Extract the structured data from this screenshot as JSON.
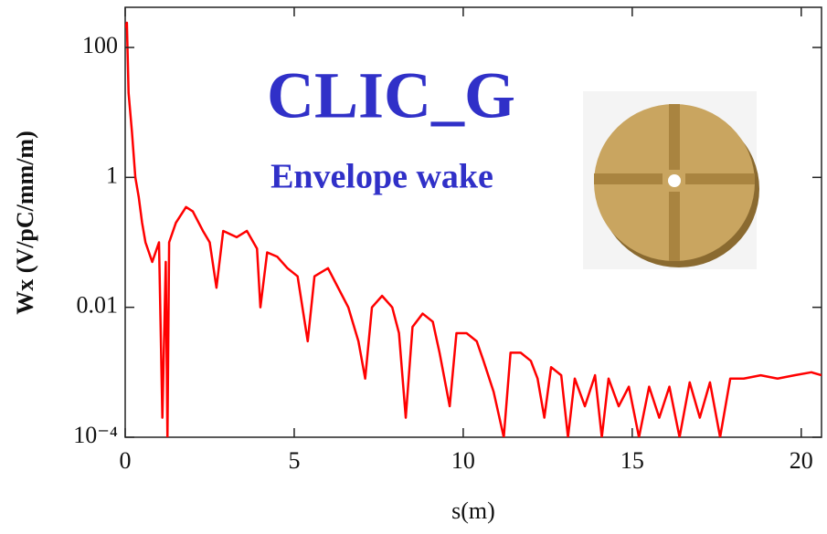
{
  "chart_data": {
    "type": "line",
    "title": "CLIC_G",
    "subtitle": "Envelope wake",
    "x_label": "s(m)",
    "y_label": "Wx (V/pC/mm/m)",
    "log_y": true,
    "xlim": [
      0,
      20.6
    ],
    "ylim": [
      0.0001,
      415
    ],
    "xticks": [
      0,
      5,
      10,
      15,
      20
    ],
    "yticks": [
      100,
      1,
      0.01,
      {
        "value": 0.0001,
        "label": "10⁻⁴"
      }
    ],
    "series": [
      {
        "name": "Wx",
        "color": "#ff0000",
        "x": [
          0,
          0.05,
          0.1,
          0.2,
          0.3,
          0.4,
          0.5,
          0.6,
          0.8,
          1.0,
          1.1,
          1.2,
          1.25,
          1.3,
          1.5,
          1.8,
          2.0,
          2.3,
          2.5,
          2.7,
          2.9,
          3.3,
          3.6,
          3.9,
          4.0,
          4.2,
          4.5,
          4.8,
          5.1,
          5.4,
          5.6,
          6.0,
          6.3,
          6.6,
          6.9,
          7.1,
          7.3,
          7.6,
          7.9,
          8.1,
          8.3,
          8.5,
          8.8,
          9.1,
          9.3,
          9.6,
          9.8,
          10.1,
          10.4,
          10.6,
          10.9,
          11.2,
          11.4,
          11.7,
          12.0,
          12.2,
          12.4,
          12.6,
          12.9,
          13.1,
          13.3,
          13.6,
          13.9,
          14.1,
          14.3,
          14.6,
          14.9,
          15.2,
          15.5,
          15.8,
          16.1,
          16.4,
          16.7,
          17.0,
          17.3,
          17.6,
          17.9,
          18.3,
          18.8,
          19.3,
          19.8,
          20.3,
          20.6
        ],
        "values": [
          200,
          240,
          20,
          5,
          1,
          0.5,
          0.2,
          0.1,
          0.05,
          0.1,
          0.0002,
          0.05,
          0.0001,
          0.1,
          0.2,
          0.35,
          0.3,
          0.15,
          0.1,
          0.02,
          0.15,
          0.12,
          0.15,
          0.08,
          0.01,
          0.07,
          0.06,
          0.04,
          0.03,
          0.003,
          0.03,
          0.04,
          0.02,
          0.01,
          0.003,
          0.0008,
          0.01,
          0.015,
          0.01,
          0.004,
          0.0002,
          0.005,
          0.008,
          0.006,
          0.002,
          0.0003,
          0.004,
          0.004,
          0.003,
          0.0015,
          0.0005,
          0.0001,
          0.002,
          0.002,
          0.0015,
          0.0008,
          0.0002,
          0.0012,
          0.0009,
          0.0001,
          0.0008,
          0.0003,
          0.0009,
          0.0001,
          0.0008,
          0.0003,
          0.0006,
          0.0001,
          0.0006,
          0.0002,
          0.0006,
          0.0001,
          0.0007,
          0.0002,
          0.0007,
          0.0001,
          0.0008,
          0.0008,
          0.0009,
          0.0008,
          0.0009,
          0.001,
          0.0009
        ]
      }
    ]
  }
}
